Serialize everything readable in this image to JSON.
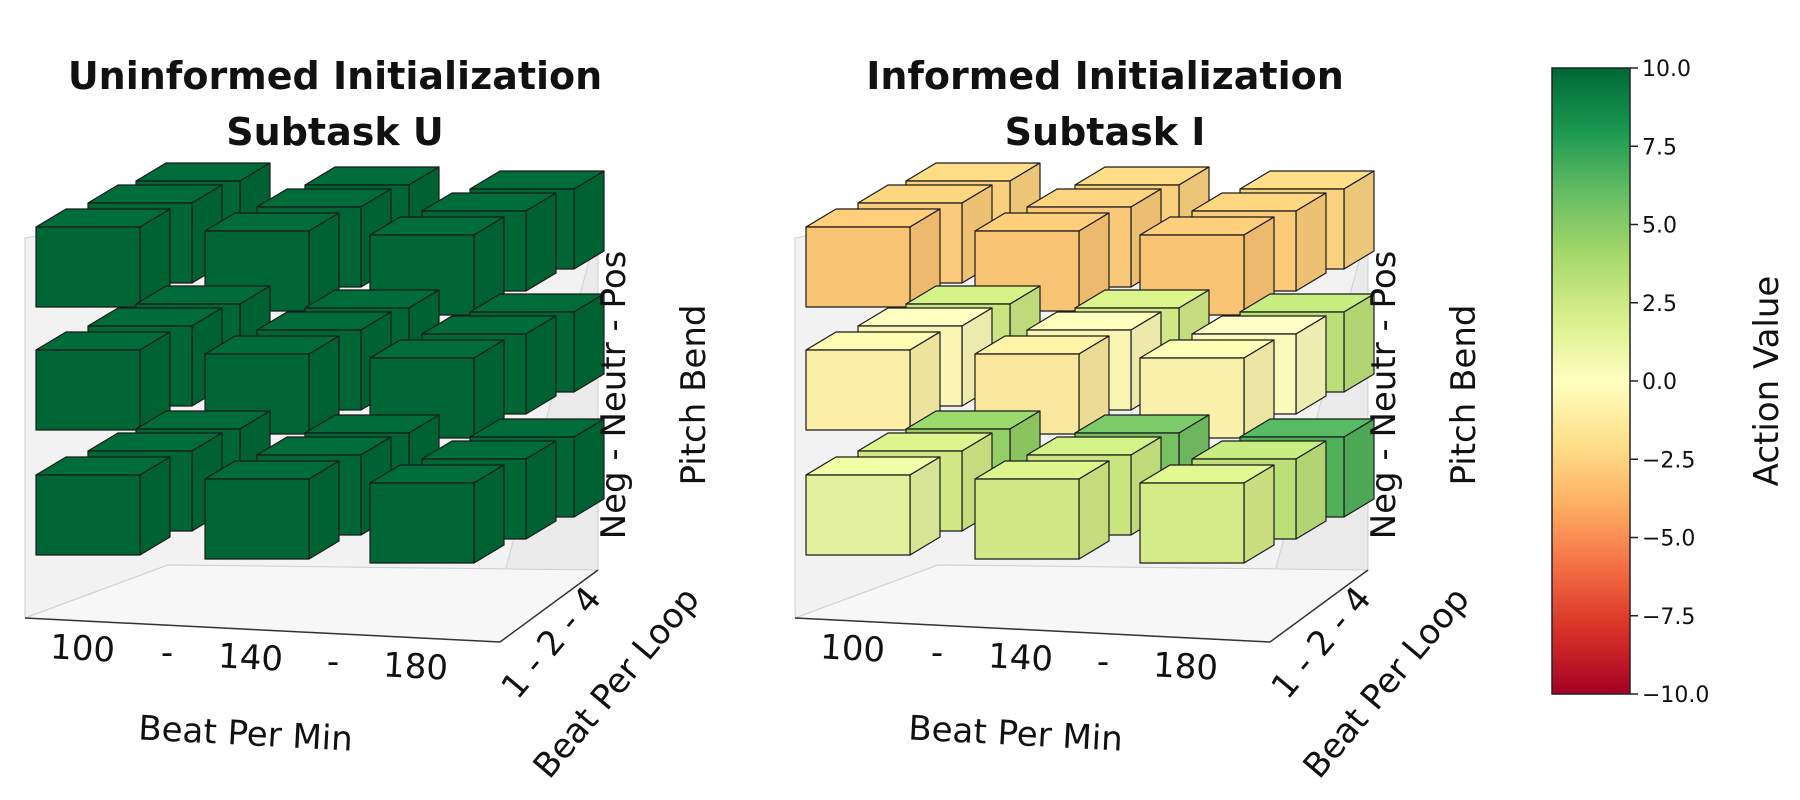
{
  "chart_data": [
    {
      "type": "3d-bar",
      "title": [
        "Uninformed Initialization",
        "Subtask U"
      ],
      "xlabel": "Beat Per Min",
      "ylabel": "Beat Per Loop",
      "zlabel": "Pitch Bend",
      "x_ticks": [
        "100",
        "-",
        "140",
        "-",
        "180"
      ],
      "y_ticks": "1 - 2 - 4",
      "z_ticks": "Neg - Neutr - Pos",
      "x_categories": [
        "100",
        "140",
        "180"
      ],
      "y_categories": [
        "1",
        "2",
        "4"
      ],
      "z_categories": [
        "Neg",
        "Neutr",
        "Pos"
      ],
      "values": {
        "Pos": [
          [
            10,
            10,
            10
          ],
          [
            10,
            10,
            10
          ],
          [
            10,
            10,
            10
          ]
        ],
        "Neutr": [
          [
            10,
            10,
            10
          ],
          [
            10,
            10,
            10
          ],
          [
            10,
            10,
            10
          ]
        ],
        "Neg": [
          [
            10,
            10,
            10
          ],
          [
            10,
            10,
            10
          ],
          [
            10,
            10,
            10
          ]
        ]
      }
    },
    {
      "type": "3d-bar",
      "title": [
        "Informed Initialization",
        "Subtask I"
      ],
      "xlabel": "Beat Per Min",
      "ylabel": "Beat Per Loop",
      "zlabel": "Pitch Bend",
      "x_ticks": [
        "100",
        "-",
        "140",
        "-",
        "180"
      ],
      "y_ticks": "1 - 2 - 4",
      "z_ticks": "Neg - Neutr - Pos",
      "x_categories": [
        "100",
        "140",
        "180"
      ],
      "y_categories": [
        "1",
        "2",
        "4"
      ],
      "z_categories": [
        "Neg",
        "Neutr",
        "Pos"
      ],
      "values": {
        "Pos": [
          [
            -3.0,
            -3.0,
            -3.0
          ],
          [
            -2.7,
            -2.8,
            -2.7
          ],
          [
            -2.5,
            -2.5,
            -2.4
          ]
        ],
        "Neutr": [
          [
            -0.8,
            -1.2,
            -0.6
          ],
          [
            -0.2,
            -0.3,
            0.0
          ],
          [
            2.5,
            2.2,
            3.0
          ]
        ],
        "Neg": [
          [
            1.2,
            2.2,
            2.0
          ],
          [
            2.2,
            2.5,
            3.0
          ],
          [
            4.5,
            5.5,
            6.5
          ]
        ]
      }
    }
  ],
  "colorbar": {
    "label": "Action Value",
    "min": -10.0,
    "max": 10.0,
    "ticks": [
      "10.0",
      "7.5",
      "5.0",
      "2.5",
      "0.0",
      "−2.5",
      "−5.0",
      "−7.5",
      "−10.0"
    ],
    "colormap": "RdYlGn",
    "colors": [
      "#a50026",
      "#d73027",
      "#f46d43",
      "#fdae61",
      "#fee08b",
      "#ffffbf",
      "#d9ef8b",
      "#a6d96a",
      "#66bd63",
      "#1a9850",
      "#006837"
    ]
  }
}
